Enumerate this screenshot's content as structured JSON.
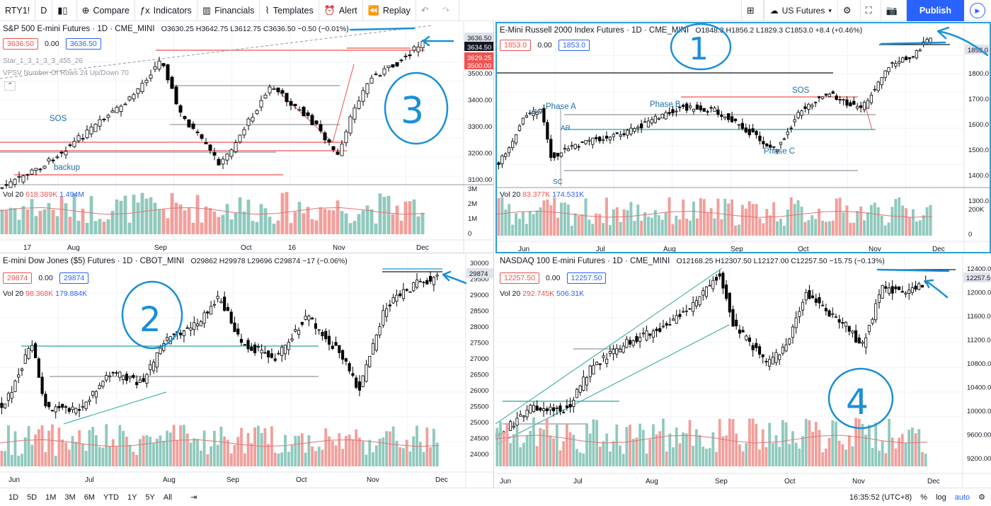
{
  "toolbar": {
    "symbol": "RTY1!",
    "interval": "D",
    "compare": "Compare",
    "indicators": "Indicators",
    "financials": "Financials",
    "templates": "Templates",
    "alert": "Alert",
    "replay": "Replay",
    "exchange": "US Futures",
    "publish": "Publish"
  },
  "panes": [
    {
      "title": "S&P 500 E-mini Futures · 1D · CME_MINI",
      "ohlc": "O3630.25 H3642.75 L3612.75 C3636.50 −0.50 (−0.01%)",
      "bid": "3636.50",
      "spread": "0.00",
      "ask": "3636.50",
      "indicator1": "Star_1_3_1_3_3_455_26",
      "indicator2": "VPSV Number Of Rows 24 Up/Down 70",
      "vol": "Vol 20",
      "vol1": "618.389K",
      "vol2": "1.494M",
      "last_price": "3636.50",
      "price_tag2": "3634.50",
      "price_tag3": "3629.25",
      "price_tag4": "3500.00",
      "y_labels": [
        "3500.00",
        "3400.00",
        "3300.00",
        "3200.00",
        "3100.00"
      ],
      "vol_labels": [
        "3M",
        "2M",
        "1M",
        "0"
      ],
      "x_labels": [
        "17",
        "Aug",
        "Sep",
        "Oct",
        "16",
        "Nov",
        "Dec"
      ],
      "annotations": [
        "SOS",
        "backup"
      ]
    },
    {
      "title": "E-Mini Russell 2000 Index Futures · 1D · CME_MINI",
      "ohlc": "O1848.3 H1856.2 L1829.3 C1853.0 +8.4 (+0.46%)",
      "bid": "1853.0",
      "spread": "0.00",
      "ask": "1853.0",
      "vol": "Vol 20",
      "vol1": "83.377K",
      "vol2": "174.531K",
      "last_price": "1853.0",
      "y_labels": [
        "1800.0",
        "1700.0",
        "1600.0",
        "1500.0",
        "1400.0",
        "1300.0"
      ],
      "vol_labels": [
        "200K",
        "0"
      ],
      "x_labels": [
        "Jun",
        "Jul",
        "Aug",
        "Sep",
        "Oct",
        "Nov",
        "Dec"
      ],
      "annotations": [
        "Phase A",
        "Phase B",
        "SOS",
        "Phase C",
        "BC",
        "AR",
        "SC"
      ]
    },
    {
      "title": "E-mini Dow Jones ($5) Futures · 1D · CBOT_MINI",
      "ohlc": "O29862 H29978 L29696 C29874 −17 (−0.06%)",
      "bid": "29874",
      "spread": "0.00",
      "ask": "29874",
      "vol": "Vol 20",
      "vol1": "98.368K",
      "vol2": "179.884K",
      "last_price": "29874",
      "y_labels": [
        "30000",
        "29500",
        "29000",
        "28500",
        "28000",
        "27500",
        "27000",
        "26500",
        "26000",
        "25500",
        "25000",
        "24500",
        "24000"
      ],
      "x_labels": [
        "Jun",
        "Jul",
        "Aug",
        "Sep",
        "Oct",
        "Nov",
        "Dec"
      ]
    },
    {
      "title": "NASDAQ 100 E-mini Futures · 1D · CME_MINI",
      "ohlc": "O12168.25 H12307.50 L12127.00 C12257.50 −15.75 (−0.13%)",
      "bid": "12257.50",
      "spread": "0.00",
      "ask": "12257.50",
      "vol": "Vol 20",
      "vol1": "292.745K",
      "vol2": "506.31K",
      "last_price": "12257.50",
      "y_labels": [
        "12400.00",
        "12000.00",
        "11600.00",
        "11200.00",
        "10800.00",
        "10400.00",
        "10000.00",
        "9600.00",
        "9200.00"
      ],
      "x_labels": [
        "Jun",
        "Jul",
        "Aug",
        "Sep",
        "Oct",
        "Nov",
        "Dec"
      ]
    }
  ],
  "handwritten": [
    "1",
    "2",
    "3",
    "4"
  ],
  "bottombar": {
    "ranges": [
      "1D",
      "5D",
      "1M",
      "3M",
      "6M",
      "YTD",
      "1Y",
      "5Y",
      "All"
    ],
    "time": "16:35:52 (UTC+8)",
    "pct": "%",
    "log": "log",
    "auto": "auto"
  },
  "colors": {
    "up": "#26a69a",
    "down": "#ef5350",
    "accent": "#2962ff",
    "hand": "#1a8fd8"
  }
}
